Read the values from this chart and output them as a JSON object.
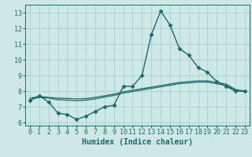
{
  "title": "",
  "xlabel": "Humidex (Indice chaleur)",
  "ylabel": "",
  "xlim": [
    -0.5,
    23.5
  ],
  "ylim": [
    5.8,
    13.5
  ],
  "yticks": [
    6,
    7,
    8,
    9,
    10,
    11,
    12,
    13
  ],
  "xticks": [
    0,
    1,
    2,
    3,
    4,
    5,
    6,
    7,
    8,
    9,
    10,
    11,
    12,
    13,
    14,
    15,
    16,
    17,
    18,
    19,
    20,
    21,
    22,
    23
  ],
  "background_color": "#cde8e5",
  "grid_color": "#aacfcc",
  "line_color": "#1a6b6b",
  "lines": [
    {
      "x": [
        0,
        1,
        2,
        3,
        4,
        5,
        6,
        7,
        8,
        9,
        10,
        11,
        12,
        13,
        14,
        15,
        16,
        17,
        18,
        19,
        20,
        21,
        22,
        23
      ],
      "y": [
        7.4,
        7.7,
        7.3,
        6.6,
        6.5,
        6.2,
        6.4,
        6.7,
        7.0,
        7.1,
        8.3,
        8.3,
        9.0,
        11.6,
        13.1,
        12.2,
        10.7,
        10.3,
        9.5,
        9.2,
        8.6,
        8.3,
        8.0,
        8.0
      ],
      "marker": "D",
      "markersize": 2.5,
      "linewidth": 1.0
    },
    {
      "x": [
        0,
        1,
        2,
        3,
        4,
        5,
        6,
        7,
        8,
        9,
        10,
        11,
        12,
        13,
        14,
        15,
        16,
        17,
        18,
        19,
        20,
        21,
        22,
        23
      ],
      "y": [
        7.55,
        7.65,
        7.6,
        7.55,
        7.53,
        7.5,
        7.52,
        7.6,
        7.7,
        7.8,
        7.95,
        8.05,
        8.15,
        8.25,
        8.35,
        8.45,
        8.55,
        8.6,
        8.65,
        8.65,
        8.55,
        8.45,
        8.1,
        8.0
      ],
      "marker": null,
      "linewidth": 0.9
    },
    {
      "x": [
        0,
        1,
        2,
        3,
        4,
        5,
        6,
        7,
        8,
        9,
        10,
        11,
        12,
        13,
        14,
        15,
        16,
        17,
        18,
        19,
        20,
        21,
        22,
        23
      ],
      "y": [
        7.45,
        7.6,
        7.55,
        7.45,
        7.42,
        7.38,
        7.42,
        7.5,
        7.62,
        7.72,
        7.87,
        7.97,
        8.07,
        8.17,
        8.27,
        8.37,
        8.47,
        8.52,
        8.57,
        8.57,
        8.47,
        8.35,
        8.05,
        7.95
      ],
      "marker": null,
      "linewidth": 0.9
    }
  ],
  "tick_fontsize": 6,
  "xlabel_fontsize": 7,
  "tick_color": "#1a6b6b",
  "spine_color": "#1a6b6b"
}
